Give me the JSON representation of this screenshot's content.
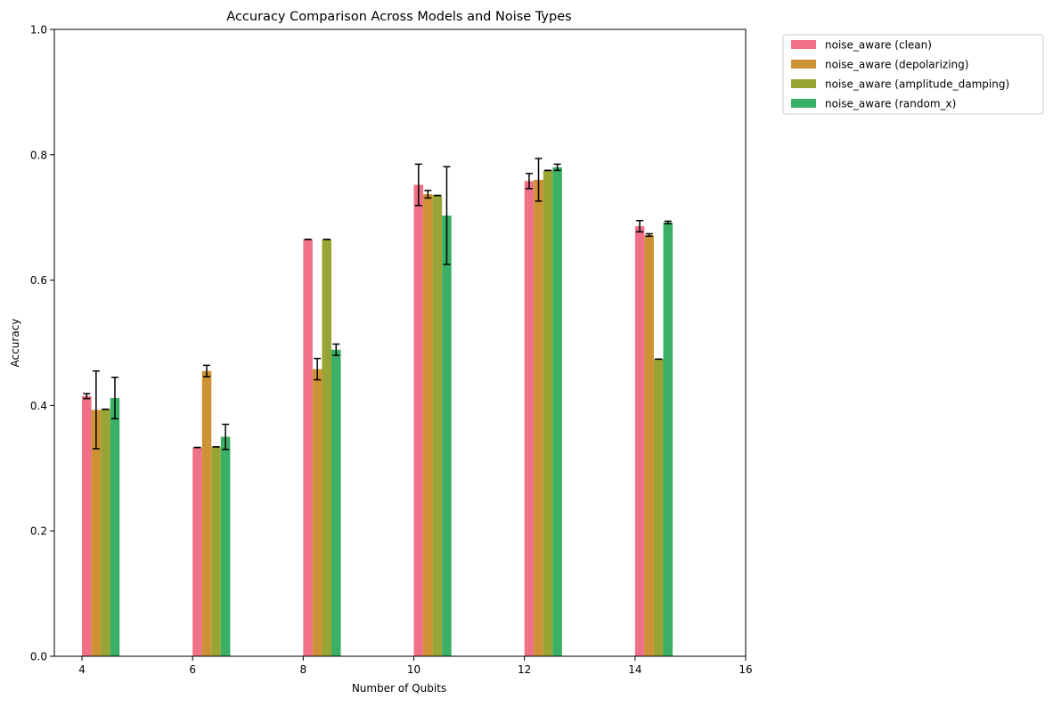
{
  "chart_data": {
    "type": "bar",
    "title": "Accuracy Comparison Across Models and Noise Types",
    "xlabel": "Number of Qubits",
    "ylabel": "Accuracy",
    "xlim": [
      3.5,
      16
    ],
    "ylim": [
      0,
      1.0
    ],
    "xticks": [
      4,
      6,
      8,
      10,
      12,
      14,
      16
    ],
    "yticks": [
      0.0,
      0.2,
      0.4,
      0.6,
      0.8,
      1.0
    ],
    "xtick_labels": [
      "4",
      "6",
      "8",
      "10",
      "12",
      "14",
      "16"
    ],
    "ytick_labels": [
      "0.0",
      "0.2",
      "0.4",
      "0.6",
      "0.8",
      "1.0"
    ],
    "grid": false,
    "legend_placement": "outside-top-right",
    "categories": [
      4,
      6,
      8,
      10,
      12,
      14
    ],
    "series": [
      {
        "name": "noise_aware (clean)",
        "color": "#f07187",
        "values": [
          0.415,
          0.333,
          0.665,
          0.752,
          0.758,
          0.686
        ],
        "errors": [
          0.004,
          0.0,
          0.0,
          0.033,
          0.012,
          0.009
        ]
      },
      {
        "name": "noise_aware (depolarizing)",
        "color": "#cc9233",
        "values": [
          0.393,
          0.455,
          0.458,
          0.737,
          0.76,
          0.672
        ],
        "errors": [
          0.062,
          0.009,
          0.017,
          0.006,
          0.034,
          0.002
        ]
      },
      {
        "name": "noise_aware (amplitude_damping)",
        "color": "#98a434",
        "values": [
          0.394,
          0.334,
          0.665,
          0.735,
          0.775,
          0.474
        ],
        "errors": [
          0.0,
          0.0,
          0.0,
          0.0,
          0.0,
          0.0
        ]
      },
      {
        "name": "noise_aware (random_x)",
        "color": "#39b066",
        "values": [
          0.412,
          0.35,
          0.489,
          0.703,
          0.78,
          0.692
        ],
        "errors": [
          0.033,
          0.02,
          0.009,
          0.078,
          0.005,
          0.002
        ]
      }
    ]
  }
}
